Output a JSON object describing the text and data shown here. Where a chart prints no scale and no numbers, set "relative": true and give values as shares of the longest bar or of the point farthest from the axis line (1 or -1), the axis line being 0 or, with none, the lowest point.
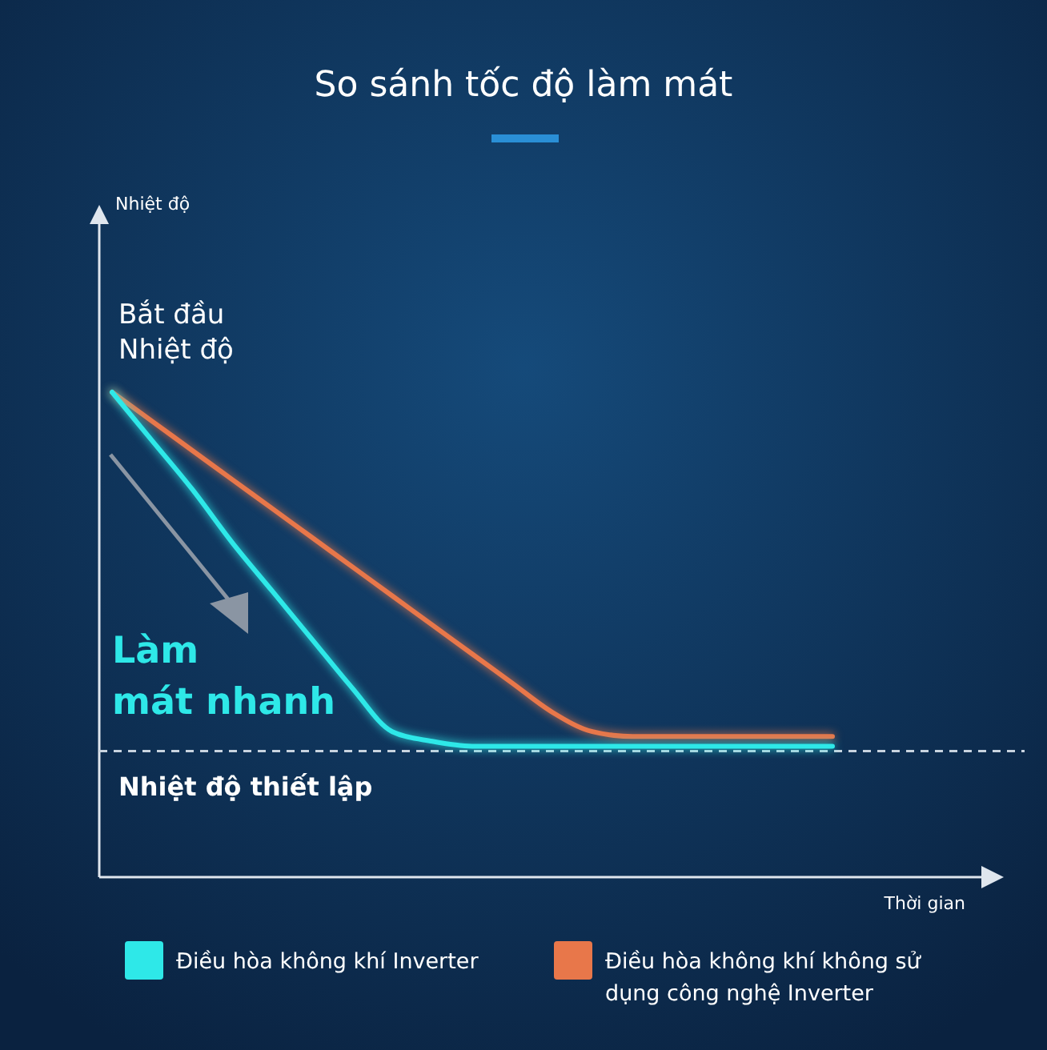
{
  "chart_data": {
    "type": "line",
    "relative": true,
    "title": "So sánh tốc độ làm mát",
    "xlabel": "Thời gian",
    "categories": [
      null,
      null,
      null,
      null,
      null,
      null,
      null,
      null,
      null,
      null,
      null,
      null,
      null,
      null,
      null,
      null,
      null,
      null,
      null
    ],
    "series": [
      {
        "name": "Điều hòa không khí Inverter",
        "color": "#2ee8e8",
        "values": [
          1,
          0.9,
          0.8,
          0.69,
          0.59,
          0.49,
          0.39,
          0.3,
          0.28,
          0.27,
          0.27,
          0.27,
          0.27,
          0.27,
          0.27,
          0.27,
          0.27,
          0.27,
          0.27
        ]
      },
      {
        "name": "Điều hòa không khí không sử dụng công nghệ Inverter",
        "color": "#e8774a",
        "values": [
          1,
          0.94,
          0.88,
          0.82,
          0.76,
          0.7,
          0.64,
          0.58,
          0.52,
          0.46,
          0.4,
          0.34,
          0.3,
          0.29,
          0.29,
          0.29,
          0.29,
          0.29,
          0.29
        ]
      }
    ],
    "ref_lines": [
      {
        "axis": "y",
        "value": 0.26,
        "label": "Nhiệt độ thiết lập",
        "color": "#c8d3df",
        "line_style": "dashed"
      }
    ],
    "annotations": [
      "Bắt đầu\nNhiệt độ",
      "Làm\nmát nhanh",
      "Nhiệt độ"
    ],
    "legend": "bottom",
    "marker": "none",
    "line_style": "solid",
    "grid": false
  }
}
